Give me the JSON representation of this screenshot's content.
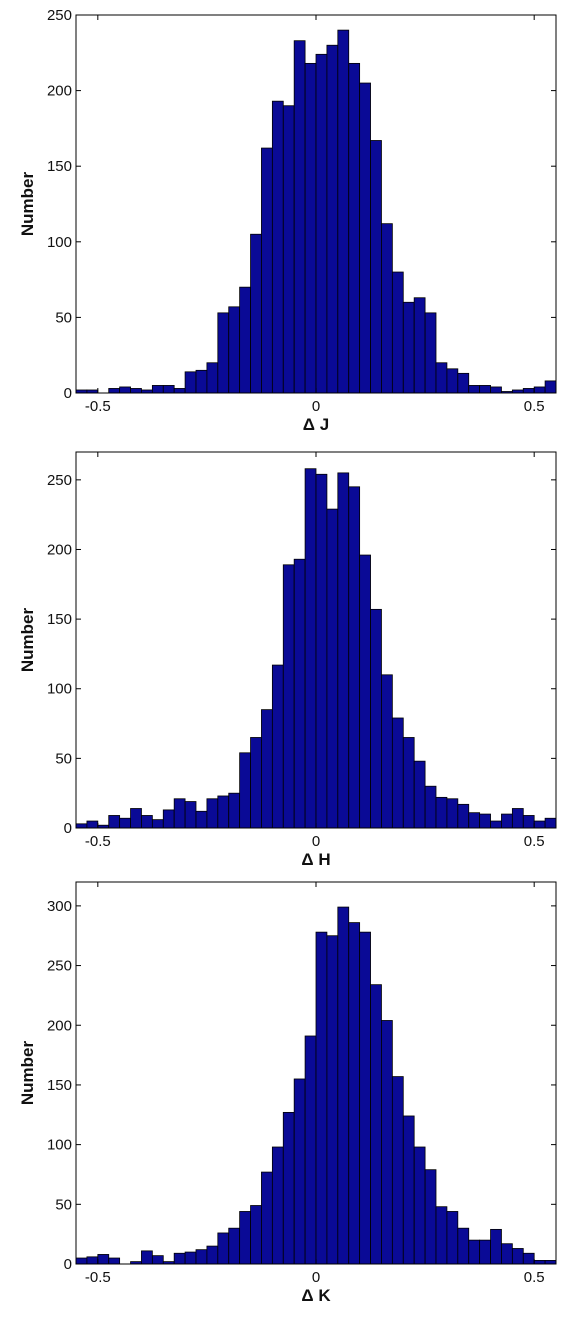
{
  "chart_data": [
    {
      "type": "bar",
      "title": "",
      "xlabel": "Δ J",
      "ylabel": "Number",
      "xlim": [
        -0.55,
        0.55
      ],
      "ylim": [
        0,
        250
      ],
      "x_ticks": [
        -0.5,
        0,
        0.5
      ],
      "x_tick_labels": [
        "-0.5",
        "0",
        "0.5"
      ],
      "y_ticks": [
        0,
        50,
        100,
        150,
        200,
        250
      ],
      "y_tick_labels": [
        "0",
        "50",
        "100",
        "150",
        "200",
        "250"
      ],
      "grid": false,
      "bar_color": "#0a0a96",
      "bin_width": 0.025,
      "x": [
        -0.5375,
        -0.5125,
        -0.4875,
        -0.4625,
        -0.4375,
        -0.4125,
        -0.3875,
        -0.3625,
        -0.3375,
        -0.3125,
        -0.2875,
        -0.2625,
        -0.2375,
        -0.2125,
        -0.1875,
        -0.1625,
        -0.1375,
        -0.1125,
        -0.0875,
        -0.0625,
        -0.0375,
        -0.0125,
        0.0125,
        0.0375,
        0.0625,
        0.0875,
        0.1125,
        0.1375,
        0.1625,
        0.1875,
        0.2125,
        0.2375,
        0.2625,
        0.2875,
        0.3125,
        0.3375,
        0.3625,
        0.3875,
        0.4125,
        0.4375,
        0.4625,
        0.4875,
        0.5125,
        0.5375
      ],
      "values": [
        2,
        2,
        0,
        3,
        4,
        3,
        2,
        5,
        5,
        3,
        14,
        15,
        20,
        53,
        57,
        70,
        105,
        162,
        193,
        190,
        233,
        218,
        224,
        230,
        240,
        218,
        205,
        167,
        112,
        80,
        60,
        63,
        53,
        20,
        16,
        13,
        5,
        5,
        4,
        1,
        2,
        3,
        4,
        8
      ]
    },
    {
      "type": "bar",
      "title": "",
      "xlabel": "Δ H",
      "ylabel": "Number",
      "xlim": [
        -0.55,
        0.55
      ],
      "ylim": [
        0,
        270
      ],
      "x_ticks": [
        -0.5,
        0,
        0.5
      ],
      "x_tick_labels": [
        "-0.5",
        "0",
        "0.5"
      ],
      "y_ticks": [
        0,
        50,
        100,
        150,
        200,
        250
      ],
      "y_tick_labels": [
        "0",
        "50",
        "100",
        "150",
        "200",
        "250"
      ],
      "grid": false,
      "bar_color": "#0a0a96",
      "bin_width": 0.025,
      "x": [
        -0.5375,
        -0.5125,
        -0.4875,
        -0.4625,
        -0.4375,
        -0.4125,
        -0.3875,
        -0.3625,
        -0.3375,
        -0.3125,
        -0.2875,
        -0.2625,
        -0.2375,
        -0.2125,
        -0.1875,
        -0.1625,
        -0.1375,
        -0.1125,
        -0.0875,
        -0.0625,
        -0.0375,
        -0.0125,
        0.0125,
        0.0375,
        0.0625,
        0.0875,
        0.1125,
        0.1375,
        0.1625,
        0.1875,
        0.2125,
        0.2375,
        0.2625,
        0.2875,
        0.3125,
        0.3375,
        0.3625,
        0.3875,
        0.4125,
        0.4375,
        0.4625,
        0.4875,
        0.5125,
        0.5375
      ],
      "values": [
        3,
        5,
        2,
        9,
        7,
        14,
        9,
        6,
        13,
        21,
        19,
        12,
        21,
        23,
        25,
        54,
        65,
        85,
        117,
        189,
        193,
        258,
        254,
        229,
        255,
        245,
        196,
        157,
        110,
        79,
        65,
        48,
        30,
        22,
        21,
        17,
        11,
        10,
        5,
        10,
        14,
        9,
        5,
        7
      ]
    },
    {
      "type": "bar",
      "title": "",
      "xlabel": "Δ K",
      "ylabel": "Number",
      "xlim": [
        -0.55,
        0.55
      ],
      "ylim": [
        0,
        320
      ],
      "x_ticks": [
        -0.5,
        0,
        0.5
      ],
      "x_tick_labels": [
        "-0.5",
        "0",
        "0.5"
      ],
      "y_ticks": [
        0,
        50,
        100,
        150,
        200,
        250,
        300
      ],
      "y_tick_labels": [
        "0",
        "50",
        "100",
        "150",
        "200",
        "250",
        "300"
      ],
      "grid": false,
      "bar_color": "#0a0a96",
      "bin_width": 0.025,
      "x": [
        -0.5375,
        -0.5125,
        -0.4875,
        -0.4625,
        -0.4375,
        -0.4125,
        -0.3875,
        -0.3625,
        -0.3375,
        -0.3125,
        -0.2875,
        -0.2625,
        -0.2375,
        -0.2125,
        -0.1875,
        -0.1625,
        -0.1375,
        -0.1125,
        -0.0875,
        -0.0625,
        -0.0375,
        -0.0125,
        0.0125,
        0.0375,
        0.0625,
        0.0875,
        0.1125,
        0.1375,
        0.1625,
        0.1875,
        0.2125,
        0.2375,
        0.2625,
        0.2875,
        0.3125,
        0.3375,
        0.3625,
        0.3875,
        0.4125,
        0.4375,
        0.4625,
        0.4875,
        0.5125,
        0.5375
      ],
      "values": [
        5,
        6,
        8,
        5,
        0,
        2,
        11,
        7,
        2,
        9,
        10,
        12,
        15,
        26,
        30,
        44,
        49,
        77,
        98,
        127,
        155,
        191,
        278,
        275,
        299,
        286,
        278,
        234,
        204,
        157,
        124,
        98,
        79,
        48,
        44,
        30,
        20,
        20,
        29,
        17,
        13,
        9,
        3,
        3
      ]
    }
  ]
}
